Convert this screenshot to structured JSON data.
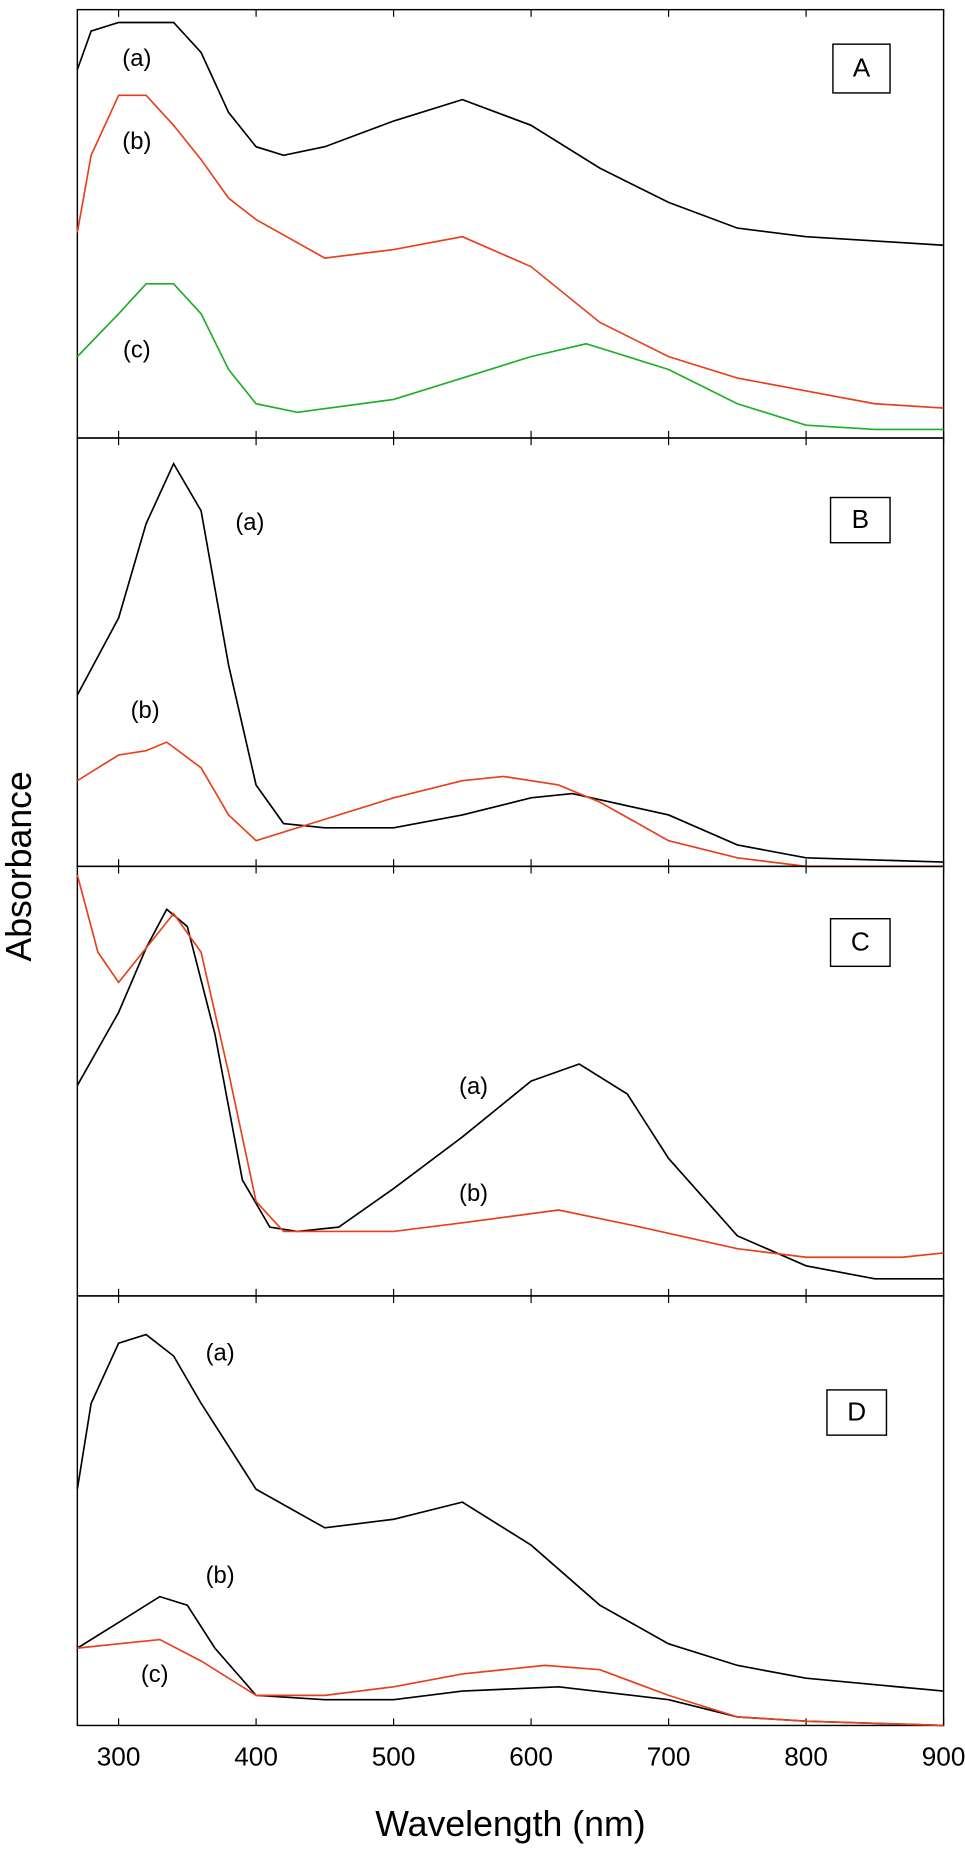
{
  "chart_data": [
    {
      "type": "line",
      "panel_label": "A",
      "xlim": [
        270,
        900
      ],
      "ylim": [
        0,
        1
      ],
      "series": [
        {
          "name": "(a)",
          "color": "#000000",
          "x": [
            270,
            280,
            300,
            320,
            340,
            360,
            380,
            400,
            420,
            450,
            500,
            550,
            600,
            650,
            700,
            750,
            800,
            850,
            900
          ],
          "values": [
            0.86,
            0.95,
            0.97,
            0.97,
            0.97,
            0.9,
            0.76,
            0.68,
            0.66,
            0.68,
            0.74,
            0.79,
            0.73,
            0.63,
            0.55,
            0.49,
            0.47,
            0.46,
            0.45
          ]
        },
        {
          "name": "(b)",
          "color": "#e8401c",
          "x": [
            270,
            280,
            300,
            320,
            340,
            360,
            380,
            400,
            450,
            500,
            550,
            600,
            650,
            700,
            750,
            800,
            850,
            900
          ],
          "values": [
            0.48,
            0.66,
            0.8,
            0.8,
            0.73,
            0.65,
            0.56,
            0.51,
            0.42,
            0.44,
            0.47,
            0.4,
            0.27,
            0.19,
            0.14,
            0.11,
            0.08,
            0.07
          ]
        },
        {
          "name": "(c)",
          "color": "#1fae28",
          "x": [
            270,
            300,
            320,
            340,
            360,
            380,
            400,
            430,
            500,
            550,
            600,
            640,
            700,
            750,
            800,
            850,
            900
          ],
          "values": [
            0.19,
            0.29,
            0.36,
            0.36,
            0.29,
            0.16,
            0.08,
            0.06,
            0.09,
            0.14,
            0.19,
            0.22,
            0.16,
            0.08,
            0.03,
            0.02,
            0.02
          ]
        }
      ]
    },
    {
      "type": "line",
      "panel_label": "B",
      "xlim": [
        270,
        900
      ],
      "ylim": [
        0,
        1
      ],
      "series": [
        {
          "name": "(a)",
          "color": "#000000",
          "x": [
            270,
            300,
            320,
            340,
            360,
            380,
            400,
            420,
            450,
            500,
            550,
            600,
            630,
            700,
            750,
            800,
            900
          ],
          "values": [
            0.4,
            0.58,
            0.8,
            0.94,
            0.83,
            0.47,
            0.19,
            0.1,
            0.09,
            0.09,
            0.12,
            0.16,
            0.17,
            0.12,
            0.05,
            0.02,
            0.01
          ]
        },
        {
          "name": "(b)",
          "color": "#e8401c",
          "x": [
            270,
            300,
            320,
            335,
            360,
            380,
            400,
            450,
            500,
            550,
            580,
            620,
            650,
            700,
            750,
            800,
            900
          ],
          "values": [
            0.2,
            0.26,
            0.27,
            0.29,
            0.23,
            0.12,
            0.06,
            0.11,
            0.16,
            0.2,
            0.21,
            0.19,
            0.15,
            0.06,
            0.02,
            0.0,
            0.0
          ]
        }
      ]
    },
    {
      "type": "line",
      "panel_label": "C",
      "xlim": [
        270,
        900
      ],
      "ylim": [
        0,
        1
      ],
      "series": [
        {
          "name": "(a)",
          "color": "#000000",
          "x": [
            270,
            300,
            320,
            335,
            350,
            370,
            390,
            410,
            430,
            460,
            500,
            550,
            600,
            635,
            670,
            700,
            750,
            800,
            850,
            900
          ],
          "values": [
            0.49,
            0.66,
            0.81,
            0.9,
            0.86,
            0.61,
            0.27,
            0.16,
            0.15,
            0.16,
            0.25,
            0.37,
            0.5,
            0.54,
            0.47,
            0.32,
            0.14,
            0.07,
            0.04,
            0.04
          ]
        },
        {
          "name": "(b)",
          "color": "#e8401c",
          "x": [
            270,
            285,
            300,
            320,
            340,
            360,
            380,
            400,
            420,
            500,
            550,
            620,
            680,
            750,
            800,
            870,
            900
          ],
          "values": [
            0.98,
            0.8,
            0.73,
            0.81,
            0.89,
            0.8,
            0.52,
            0.22,
            0.15,
            0.15,
            0.17,
            0.2,
            0.16,
            0.11,
            0.09,
            0.09,
            0.1
          ]
        }
      ]
    },
    {
      "type": "line",
      "panel_label": "D",
      "xlim": [
        270,
        900
      ],
      "ylim": [
        0,
        1
      ],
      "xticks": [
        300,
        400,
        500,
        600,
        700,
        800,
        900
      ],
      "xlabel": "Wavelength (nm)",
      "ylabel": "Absorbance",
      "series": [
        {
          "name": "(a)",
          "color": "#000000",
          "x": [
            270,
            280,
            300,
            320,
            340,
            360,
            380,
            400,
            450,
            500,
            550,
            600,
            650,
            700,
            750,
            800,
            900
          ],
          "values": [
            0.55,
            0.75,
            0.89,
            0.91,
            0.86,
            0.75,
            0.65,
            0.55,
            0.46,
            0.48,
            0.52,
            0.42,
            0.28,
            0.19,
            0.14,
            0.11,
            0.08
          ]
        },
        {
          "name": "(b)",
          "color": "#000000",
          "x": [
            270,
            300,
            330,
            350,
            370,
            400,
            450,
            500,
            550,
            620,
            700,
            750,
            800,
            900
          ],
          "values": [
            0.18,
            0.24,
            0.3,
            0.28,
            0.18,
            0.07,
            0.06,
            0.06,
            0.08,
            0.09,
            0.06,
            0.02,
            0.01,
            0.0
          ]
        },
        {
          "name": "(c)",
          "color": "#e8401c",
          "x": [
            270,
            300,
            330,
            360,
            400,
            450,
            500,
            550,
            610,
            650,
            700,
            750,
            800,
            900
          ],
          "values": [
            0.18,
            0.19,
            0.2,
            0.15,
            0.07,
            0.07,
            0.09,
            0.12,
            0.14,
            0.13,
            0.07,
            0.02,
            0.01,
            0.0
          ]
        }
      ]
    }
  ]
}
